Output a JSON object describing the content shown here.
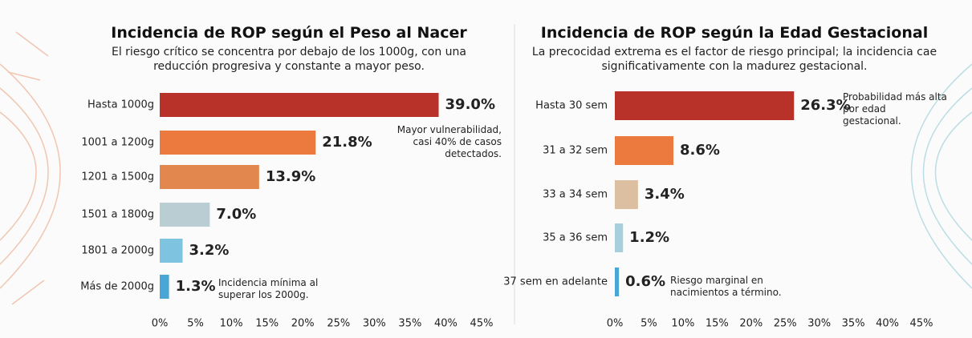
{
  "chart_data": [
    {
      "type": "bar",
      "orientation": "horizontal",
      "title": "Incidencia de ROP según el Peso al Nacer",
      "subtitle": "El riesgo crítico se concentra por debajo de los 1000g, con una reducción progresiva y constante a mayor peso.",
      "categories": [
        "Hasta 1000g",
        "1001 a 1200g",
        "1201 a 1500g",
        "1501 a 1800g",
        "1801 a 2000g",
        "Más de 2000g"
      ],
      "values": [
        39.0,
        21.8,
        13.9,
        7.0,
        3.2,
        1.3
      ],
      "value_labels": [
        "39.0%",
        "21.8%",
        "13.9%",
        "7.0%",
        "3.2%",
        "1.3%"
      ],
      "colors": [
        "#b8322a",
        "#ec7a3e",
        "#e2874e",
        "#b9cdd2",
        "#7ec4e0",
        "#4aa6d6"
      ],
      "xlim": [
        0,
        45
      ],
      "xticks": [
        {
          "value": 0,
          "label": "0%"
        },
        {
          "value": 5,
          "label": "5%"
        },
        {
          "value": 10,
          "label": "10%"
        },
        {
          "value": 15,
          "label": "15%"
        },
        {
          "value": 20,
          "label": "20%"
        },
        {
          "value": 25,
          "label": "25%"
        },
        {
          "value": 30,
          "label": "30%"
        },
        {
          "value": 35,
          "label": "35%"
        },
        {
          "value": 40,
          "label": "40%"
        },
        {
          "value": 45,
          "label": "45%"
        }
      ],
      "grid": false,
      "annotations": [
        "Mayor vulnerabilidad, casi 40% de casos detectados.",
        "Incidencia mínima al superar los 2000g."
      ]
    },
    {
      "type": "bar",
      "orientation": "horizontal",
      "title": "Incidencia de ROP según la Edad Gestacional",
      "subtitle": "La precocidad extrema es el factor de riesgo principal; la incidencia cae significativamente con la madurez gestacional.",
      "categories": [
        "Hasta 30 sem",
        "31 a 32 sem",
        "33 a 34 sem",
        "35 a 36 sem",
        "37 sem en adelante"
      ],
      "values": [
        26.3,
        8.6,
        3.4,
        1.2,
        0.6
      ],
      "value_labels": [
        "26.3%",
        "8.6%",
        "3.4%",
        "1.2%",
        "0.6%"
      ],
      "colors": [
        "#b8322a",
        "#ec7a3e",
        "#dcbfa0",
        "#a8cfdc",
        "#4aa6d6"
      ],
      "xlim": [
        0,
        45
      ],
      "xticks": [
        {
          "value": 0,
          "label": "0%"
        },
        {
          "value": 5,
          "label": "5%"
        },
        {
          "value": 10,
          "label": "10%"
        },
        {
          "value": 15,
          "label": "15%"
        },
        {
          "value": 20,
          "label": "20%"
        },
        {
          "value": 25,
          "label": "25%"
        },
        {
          "value": 30,
          "label": "30%"
        },
        {
          "value": 35,
          "label": "35%"
        },
        {
          "value": 40,
          "label": "40%"
        },
        {
          "value": 45,
          "label": "45%"
        }
      ],
      "grid": false,
      "annotations": [
        "Probabilidad más alta por edad gestacional.",
        "Riesgo marginal en nacimientos a término."
      ]
    }
  ]
}
